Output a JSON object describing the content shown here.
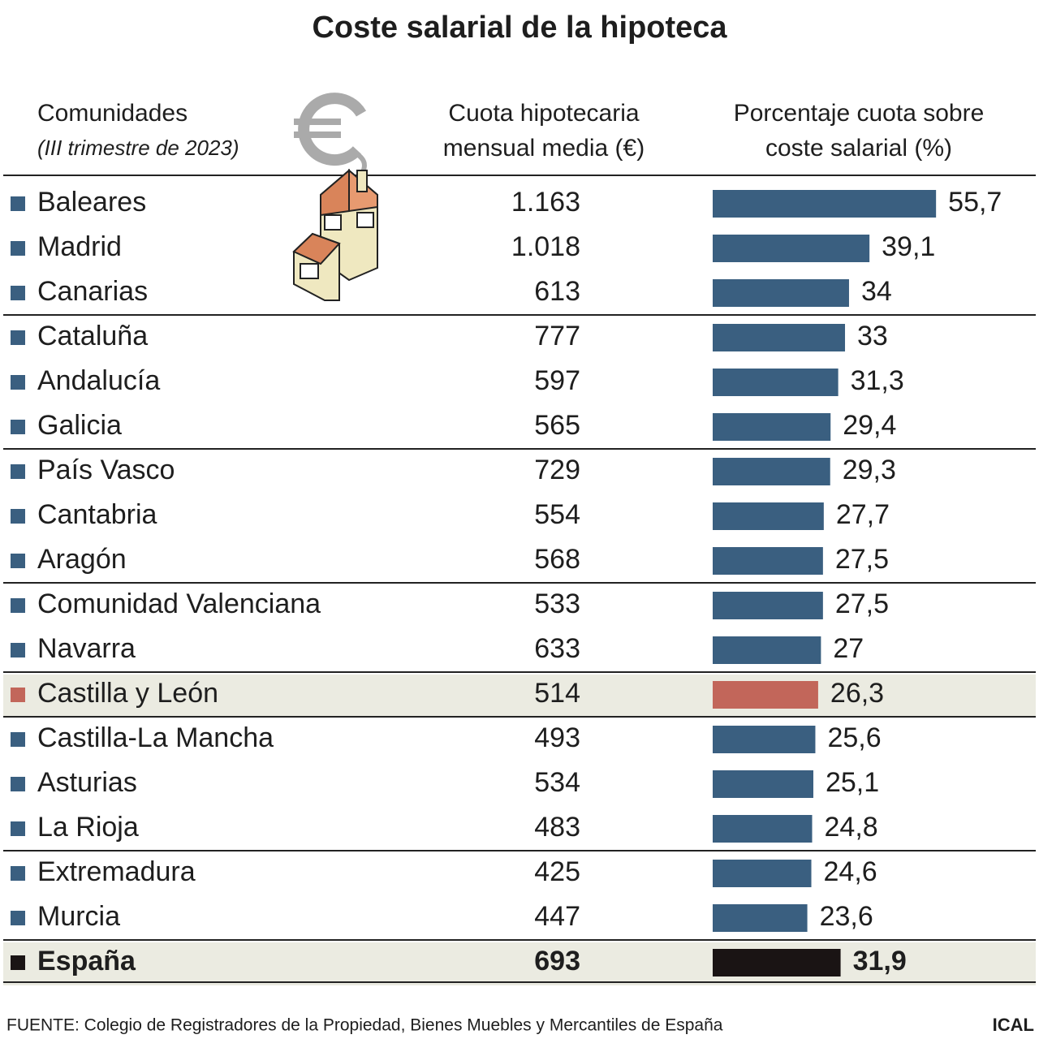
{
  "chart_data": {
    "type": "bar",
    "orientation": "horizontal",
    "title": "Coste salarial de la hipoteca",
    "category_header": [
      "Comunidades",
      "(III trimestre de 2023)"
    ],
    "categories": [
      "Baleares",
      "Madrid",
      "Canarias",
      "Cataluña",
      "Andalucía",
      "Galicia",
      "País Vasco",
      "Cantabria",
      "Aragón",
      "Comunidad Valenciana",
      "Navarra",
      "Castilla y León",
      "Castilla-La Mancha",
      "Asturias",
      "La Rioja",
      "Extremadura",
      "Murcia",
      "España"
    ],
    "cuota": {
      "header": [
        "Cuota hipotecaria",
        "mensual media (€)"
      ],
      "values": [
        1163,
        1018,
        613,
        777,
        597,
        565,
        729,
        554,
        568,
        533,
        633,
        514,
        493,
        534,
        483,
        425,
        447,
        693
      ],
      "value_labels": [
        "1.163",
        "1.018",
        "613",
        "777",
        "597",
        "565",
        "729",
        "554",
        "568",
        "533",
        "633",
        "514",
        "493",
        "534",
        "483",
        "425",
        "447",
        "693"
      ]
    },
    "series": [
      {
        "name": [
          "Porcentaje cuota sobre",
          "coste salarial (%)"
        ],
        "color": "#3a5f80",
        "colors": [
          "#3a5f80",
          "#3a5f80",
          "#3a5f80",
          "#3a5f80",
          "#3a5f80",
          "#3a5f80",
          "#3a5f80",
          "#3a5f80",
          "#3a5f80",
          "#3a5f80",
          "#3a5f80",
          "#c2665a",
          "#3a5f80",
          "#3a5f80",
          "#3a5f80",
          "#3a5f80",
          "#3a5f80",
          "#1a1414"
        ],
        "values": [
          55.7,
          39.1,
          34,
          33,
          31.3,
          29.4,
          29.3,
          27.7,
          27.5,
          27.5,
          27,
          26.3,
          25.6,
          25.1,
          24.8,
          24.6,
          23.6,
          31.9
        ],
        "value_labels": [
          "55,7",
          "39,1",
          "34",
          "33",
          "31,3",
          "29,4",
          "29,3",
          "27,7",
          "27,5",
          "27,5",
          "27",
          "26,3",
          "25,6",
          "25,1",
          "24,8",
          "24,6",
          "23,6",
          "31,9"
        ]
      }
    ],
    "source": "FUENTE: Colegio de Registradores de la Propiedad, Bienes Muebles y Mercantiles de España",
    "brand": "ICAL"
  }
}
